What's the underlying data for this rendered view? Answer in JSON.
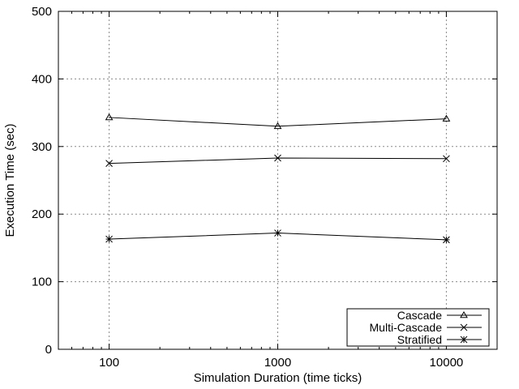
{
  "chart_data": {
    "type": "line",
    "title": "",
    "xlabel": "Simulation Duration (time ticks)",
    "ylabel": "Execution Time (sec)",
    "x_scale": "log",
    "x": [
      100,
      1000,
      10000
    ],
    "x_ticks": [
      "100",
      "1000",
      "10000"
    ],
    "xlim": [
      50,
      20000
    ],
    "ylim": [
      0,
      500
    ],
    "y_ticks": [
      "0",
      "100",
      "200",
      "300",
      "400",
      "500"
    ],
    "grid": true,
    "legend_position": "bottom-right",
    "series": [
      {
        "name": "Cascade",
        "marker": "triangle",
        "values": [
          343,
          330,
          341
        ]
      },
      {
        "name": "Multi-Cascade",
        "marker": "x",
        "values": [
          275,
          283,
          282
        ]
      },
      {
        "name": "Stratified",
        "marker": "star",
        "values": [
          163,
          172,
          162
        ]
      }
    ]
  }
}
